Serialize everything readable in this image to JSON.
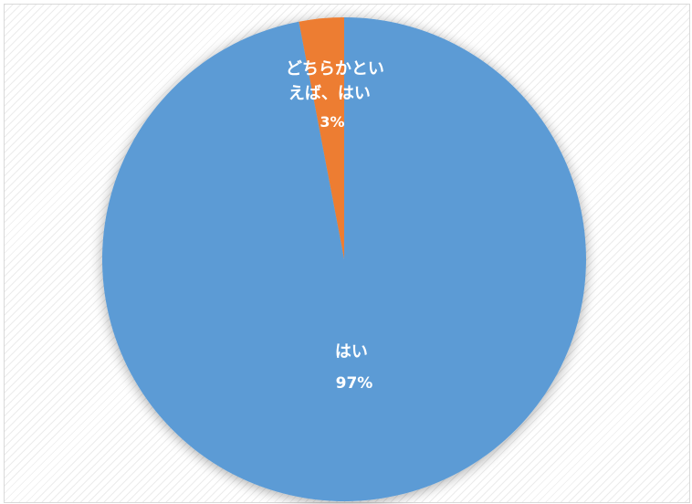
{
  "chart_data": {
    "type": "pie",
    "title": "",
    "start_angle_deg": 0,
    "direction": "counterclockwise",
    "slices": [
      {
        "label_lines": [
          "どちらかとい",
          "えば、はい"
        ],
        "value": 3,
        "percent_label": "3%",
        "color": "#ed7d31"
      },
      {
        "label_lines": [
          "はい"
        ],
        "value": 97,
        "percent_label": "97%",
        "color": "#5b9bd5"
      }
    ]
  }
}
